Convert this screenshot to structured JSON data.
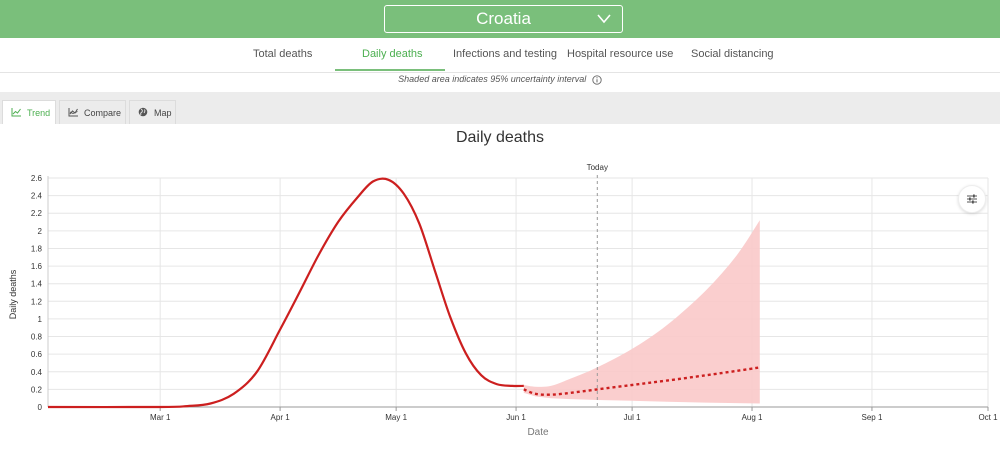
{
  "header": {
    "selected_country": "Croatia",
    "icons": {
      "dropdown": "chevron-down-icon"
    },
    "accent_color": "#7abf7b"
  },
  "nav": {
    "tabs": [
      {
        "label": "Total deaths",
        "active": false
      },
      {
        "label": "Daily deaths",
        "active": true
      },
      {
        "label": "Infections and testing",
        "active": false
      },
      {
        "label": "Hospital resource use",
        "active": false
      },
      {
        "label": "Social distancing",
        "active": false
      }
    ]
  },
  "note": {
    "text": "Shaded area indicates 95% uncertainty interval"
  },
  "view_tabs": [
    {
      "label": "Trend",
      "icon": "line-chart-icon",
      "active": true
    },
    {
      "label": "Compare",
      "icon": "compare-chart-icon",
      "active": false
    },
    {
      "label": "Map",
      "icon": "globe-icon",
      "active": false
    }
  ],
  "chart_data": {
    "type": "line",
    "title": "Daily deaths",
    "xlabel": "Date",
    "ylabel": "Daily deaths",
    "xlim": [
      "2020-02-01",
      "2020-10-01"
    ],
    "ylim": [
      0,
      2.6
    ],
    "x_ticks": [
      {
        "date": "2020-03-01",
        "label": "Mar 1"
      },
      {
        "date": "2020-04-01",
        "label": "Apr 1"
      },
      {
        "date": "2020-05-01",
        "label": "May 1"
      },
      {
        "date": "2020-06-01",
        "label": "Jun 1"
      },
      {
        "date": "2020-07-01",
        "label": "Jul 1"
      },
      {
        "date": "2020-08-01",
        "label": "Aug 1"
      },
      {
        "date": "2020-09-01",
        "label": "Sep 1"
      },
      {
        "date": "2020-10-01",
        "label": "Oct 1"
      }
    ],
    "y_ticks": [
      0,
      0.2,
      0.4,
      0.6,
      0.8,
      1,
      1.2,
      1.4,
      1.6,
      1.8,
      2,
      2.2,
      2.4,
      2.6
    ],
    "grid": true,
    "today": {
      "date": "2020-06-22",
      "label": "Today"
    },
    "line_color": "#cc1f1f",
    "band_color": "#f9c9c9",
    "observed": [
      {
        "x": "2020-02-01",
        "y": 0
      },
      {
        "x": "2020-03-01",
        "y": 0
      },
      {
        "x": "2020-03-08",
        "y": 0.01
      },
      {
        "x": "2020-03-14",
        "y": 0.04
      },
      {
        "x": "2020-03-20",
        "y": 0.15
      },
      {
        "x": "2020-03-26",
        "y": 0.4
      },
      {
        "x": "2020-04-01",
        "y": 0.88
      },
      {
        "x": "2020-04-06",
        "y": 1.3
      },
      {
        "x": "2020-04-11",
        "y": 1.73
      },
      {
        "x": "2020-04-16",
        "y": 2.1
      },
      {
        "x": "2020-04-21",
        "y": 2.38
      },
      {
        "x": "2020-04-25",
        "y": 2.56
      },
      {
        "x": "2020-04-29",
        "y": 2.58
      },
      {
        "x": "2020-05-03",
        "y": 2.42
      },
      {
        "x": "2020-05-07",
        "y": 2.08
      },
      {
        "x": "2020-05-11",
        "y": 1.55
      },
      {
        "x": "2020-05-15",
        "y": 1.02
      },
      {
        "x": "2020-05-19",
        "y": 0.61
      },
      {
        "x": "2020-05-23",
        "y": 0.36
      },
      {
        "x": "2020-05-27",
        "y": 0.26
      },
      {
        "x": "2020-05-31",
        "y": 0.24
      },
      {
        "x": "2020-06-03",
        "y": 0.24
      }
    ],
    "projected": [
      {
        "x": "2020-06-03",
        "y": 0.2
      },
      {
        "x": "2020-06-06",
        "y": 0.15
      },
      {
        "x": "2020-06-10",
        "y": 0.14
      },
      {
        "x": "2020-06-15",
        "y": 0.16
      },
      {
        "x": "2020-06-22",
        "y": 0.2
      },
      {
        "x": "2020-07-01",
        "y": 0.25
      },
      {
        "x": "2020-07-10",
        "y": 0.3
      },
      {
        "x": "2020-07-20",
        "y": 0.36
      },
      {
        "x": "2020-07-28",
        "y": 0.41
      },
      {
        "x": "2020-08-03",
        "y": 0.45
      }
    ],
    "uncertainty_upper": [
      {
        "x": "2020-06-03",
        "y": 0.25
      },
      {
        "x": "2020-06-06",
        "y": 0.23
      },
      {
        "x": "2020-06-10",
        "y": 0.24
      },
      {
        "x": "2020-06-15",
        "y": 0.32
      },
      {
        "x": "2020-06-22",
        "y": 0.45
      },
      {
        "x": "2020-07-01",
        "y": 0.66
      },
      {
        "x": "2020-07-10",
        "y": 0.93
      },
      {
        "x": "2020-07-20",
        "y": 1.32
      },
      {
        "x": "2020-07-28",
        "y": 1.72
      },
      {
        "x": "2020-08-03",
        "y": 2.12
      }
    ],
    "uncertainty_lower": [
      {
        "x": "2020-06-03",
        "y": 0.16
      },
      {
        "x": "2020-06-06",
        "y": 0.12
      },
      {
        "x": "2020-06-10",
        "y": 0.1
      },
      {
        "x": "2020-06-15",
        "y": 0.09
      },
      {
        "x": "2020-06-22",
        "y": 0.08
      },
      {
        "x": "2020-07-01",
        "y": 0.07
      },
      {
        "x": "2020-07-10",
        "y": 0.06
      },
      {
        "x": "2020-07-20",
        "y": 0.05
      },
      {
        "x": "2020-08-03",
        "y": 0.04
      }
    ]
  },
  "controls": {
    "settings_icon": "sliders-icon"
  }
}
